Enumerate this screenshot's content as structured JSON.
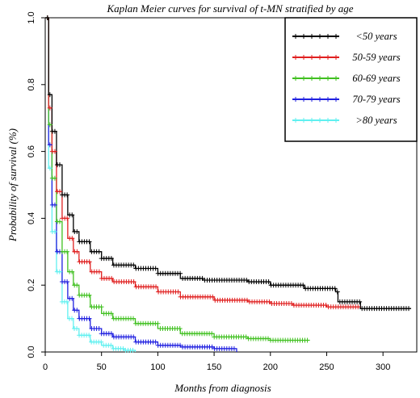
{
  "chart_data": {
    "type": "line",
    "step": true,
    "title": "Kaplan Meier curves for survival of t-MN stratified by age",
    "xlabel": "Months from diagnosis",
    "ylabel": "Probability of survival (%)",
    "xlim": [
      0,
      330
    ],
    "ylim": [
      0,
      1.0
    ],
    "xticks": [
      0,
      50,
      100,
      150,
      200,
      250,
      300
    ],
    "yticks": [
      0.0,
      0.2,
      0.4,
      0.6,
      0.8,
      1.0
    ],
    "legend_position": "top-right",
    "grid": false,
    "series": [
      {
        "name": "<50 years",
        "color": "#000000",
        "x": [
          0,
          3,
          6,
          10,
          15,
          20,
          25,
          30,
          40,
          50,
          60,
          80,
          100,
          120,
          140,
          160,
          180,
          200,
          230,
          258,
          260,
          280,
          300,
          325
        ],
        "y": [
          1.0,
          0.77,
          0.66,
          0.56,
          0.47,
          0.41,
          0.36,
          0.33,
          0.3,
          0.28,
          0.26,
          0.25,
          0.235,
          0.22,
          0.215,
          0.215,
          0.21,
          0.2,
          0.19,
          0.18,
          0.15,
          0.13,
          0.13,
          0.13
        ]
      },
      {
        "name": "50-59 years",
        "color": "#e02020",
        "x": [
          0,
          3,
          6,
          10,
          15,
          20,
          25,
          30,
          40,
          50,
          60,
          80,
          100,
          120,
          150,
          180,
          200,
          220,
          250,
          280
        ],
        "y": [
          1.0,
          0.73,
          0.6,
          0.48,
          0.4,
          0.34,
          0.3,
          0.27,
          0.24,
          0.22,
          0.21,
          0.195,
          0.18,
          0.165,
          0.155,
          0.15,
          0.145,
          0.14,
          0.135,
          0.135
        ]
      },
      {
        "name": "60-69 years",
        "color": "#40c020",
        "x": [
          0,
          3,
          6,
          10,
          15,
          20,
          25,
          30,
          40,
          50,
          60,
          80,
          100,
          120,
          150,
          180,
          200,
          235
        ],
        "y": [
          1.0,
          0.68,
          0.52,
          0.39,
          0.3,
          0.24,
          0.2,
          0.17,
          0.135,
          0.115,
          0.1,
          0.085,
          0.07,
          0.055,
          0.045,
          0.04,
          0.035,
          0.035
        ]
      },
      {
        "name": "70-79 years",
        "color": "#2020e0",
        "x": [
          0,
          3,
          6,
          10,
          15,
          20,
          25,
          30,
          40,
          50,
          60,
          80,
          100,
          120,
          150,
          170
        ],
        "y": [
          1.0,
          0.62,
          0.44,
          0.3,
          0.21,
          0.16,
          0.125,
          0.1,
          0.07,
          0.055,
          0.045,
          0.03,
          0.02,
          0.015,
          0.01,
          0.0
        ]
      },
      {
        "name": ">80 years",
        "color": "#60f0f0",
        "x": [
          0,
          3,
          6,
          10,
          15,
          20,
          25,
          30,
          40,
          50,
          60,
          70,
          80
        ],
        "y": [
          1.0,
          0.55,
          0.36,
          0.24,
          0.15,
          0.1,
          0.07,
          0.05,
          0.03,
          0.02,
          0.01,
          0.005,
          0.0
        ]
      }
    ]
  }
}
